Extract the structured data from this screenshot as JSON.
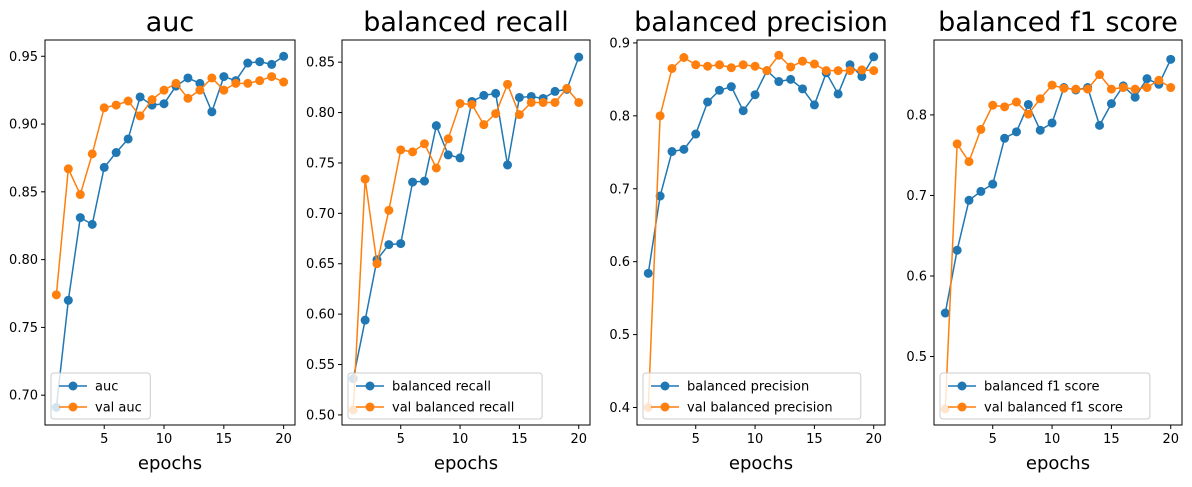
{
  "chart_data": [
    {
      "type": "line",
      "title": "auc",
      "xlabel": "epochs",
      "ylabel": "",
      "x": [
        1,
        2,
        3,
        4,
        5,
        6,
        7,
        8,
        9,
        10,
        11,
        12,
        13,
        14,
        15,
        16,
        17,
        18,
        19,
        20
      ],
      "xlim": [
        0.05,
        20.95
      ],
      "ylim": [
        0.678,
        0.962
      ],
      "xticks": [
        5,
        10,
        15,
        20
      ],
      "yticks": [
        0.7,
        0.75,
        0.8,
        0.85,
        0.9,
        0.95
      ],
      "ytick_labels": [
        "0.70",
        "0.75",
        "0.80",
        "0.85",
        "0.90",
        "0.95"
      ],
      "legend": "lower-left",
      "series": [
        {
          "name": "auc",
          "color": "#1f77b4",
          "values": [
            0.691,
            0.77,
            0.831,
            0.826,
            0.868,
            0.879,
            0.889,
            0.92,
            0.914,
            0.915,
            0.928,
            0.934,
            0.93,
            0.909,
            0.935,
            0.932,
            0.945,
            0.946,
            0.944,
            0.95
          ]
        },
        {
          "name": "val auc",
          "color": "#ff7f0e",
          "values": [
            0.774,
            0.867,
            0.848,
            0.878,
            0.912,
            0.914,
            0.917,
            0.906,
            0.918,
            0.925,
            0.93,
            0.919,
            0.925,
            0.934,
            0.925,
            0.93,
            0.93,
            0.932,
            0.935,
            0.931
          ]
        }
      ]
    },
    {
      "type": "line",
      "title": "balanced recall",
      "xlabel": "epochs",
      "ylabel": "",
      "x": [
        1,
        2,
        3,
        4,
        5,
        6,
        7,
        8,
        9,
        10,
        11,
        12,
        13,
        14,
        15,
        16,
        17,
        18,
        19,
        20
      ],
      "xlim": [
        0.05,
        20.95
      ],
      "ylim": [
        0.49,
        0.872
      ],
      "xticks": [
        5,
        10,
        15,
        20
      ],
      "yticks": [
        0.5,
        0.55,
        0.6,
        0.65,
        0.7,
        0.75,
        0.8,
        0.85
      ],
      "ytick_labels": [
        "0.50",
        "0.55",
        "0.60",
        "0.65",
        "0.70",
        "0.75",
        "0.80",
        "0.85"
      ],
      "legend": "lower-left",
      "series": [
        {
          "name": "balanced recall",
          "color": "#1f77b4",
          "values": [
            0.536,
            0.594,
            0.654,
            0.669,
            0.67,
            0.731,
            0.732,
            0.787,
            0.758,
            0.755,
            0.811,
            0.817,
            0.819,
            0.748,
            0.815,
            0.816,
            0.814,
            0.821,
            0.823,
            0.855
          ]
        },
        {
          "name": "val balanced recall",
          "color": "#ff7f0e",
          "values": [
            0.505,
            0.734,
            0.65,
            0.703,
            0.763,
            0.761,
            0.769,
            0.745,
            0.774,
            0.809,
            0.808,
            0.788,
            0.799,
            0.828,
            0.798,
            0.81,
            0.81,
            0.81,
            0.824,
            0.81
          ]
        }
      ]
    },
    {
      "type": "line",
      "title": "balanced precision",
      "xlabel": "epochs",
      "ylabel": "",
      "x": [
        1,
        2,
        3,
        4,
        5,
        6,
        7,
        8,
        9,
        10,
        11,
        12,
        13,
        14,
        15,
        16,
        17,
        18,
        19,
        20
      ],
      "xlim": [
        0.05,
        20.95
      ],
      "ylim": [
        0.376,
        0.904
      ],
      "xticks": [
        5,
        10,
        15,
        20
      ],
      "yticks": [
        0.4,
        0.5,
        0.6,
        0.7,
        0.8,
        0.9
      ],
      "ytick_labels": [
        "0.4",
        "0.5",
        "0.6",
        "0.7",
        "0.8",
        "0.9"
      ],
      "legend": "lower-left",
      "series": [
        {
          "name": "balanced precision",
          "color": "#1f77b4",
          "values": [
            0.584,
            0.69,
            0.751,
            0.754,
            0.775,
            0.819,
            0.835,
            0.84,
            0.807,
            0.829,
            0.862,
            0.847,
            0.85,
            0.837,
            0.815,
            0.859,
            0.83,
            0.87,
            0.854,
            0.881
          ]
        },
        {
          "name": "val balanced precision",
          "color": "#ff7f0e",
          "values": [
            0.4,
            0.8,
            0.865,
            0.88,
            0.87,
            0.868,
            0.87,
            0.866,
            0.87,
            0.868,
            0.862,
            0.883,
            0.867,
            0.875,
            0.871,
            0.862,
            0.862,
            0.862,
            0.863,
            0.862
          ]
        }
      ]
    },
    {
      "type": "line",
      "title": "balanced f1 score",
      "xlabel": "epochs",
      "ylabel": "",
      "x": [
        1,
        2,
        3,
        4,
        5,
        6,
        7,
        8,
        9,
        10,
        11,
        12,
        13,
        14,
        15,
        16,
        17,
        18,
        19,
        20
      ],
      "xlim": [
        0.05,
        20.95
      ],
      "ylim": [
        0.415,
        0.893
      ],
      "xticks": [
        5,
        10,
        15,
        20
      ],
      "yticks": [
        0.5,
        0.6,
        0.7,
        0.8
      ],
      "ytick_labels": [
        "0.5",
        "0.6",
        "0.7",
        "0.8"
      ],
      "legend": "lower-left",
      "series": [
        {
          "name": "balanced f1 score",
          "color": "#1f77b4",
          "values": [
            0.554,
            0.632,
            0.694,
            0.705,
            0.714,
            0.771,
            0.779,
            0.813,
            0.781,
            0.79,
            0.834,
            0.831,
            0.834,
            0.787,
            0.814,
            0.836,
            0.822,
            0.845,
            0.838,
            0.869
          ]
        },
        {
          "name": "val balanced f1 score",
          "color": "#ff7f0e",
          "values": [
            0.435,
            0.764,
            0.742,
            0.782,
            0.812,
            0.81,
            0.816,
            0.801,
            0.82,
            0.837,
            0.833,
            0.832,
            0.832,
            0.85,
            0.832,
            0.834,
            0.832,
            0.834,
            0.843,
            0.834
          ]
        }
      ]
    }
  ]
}
